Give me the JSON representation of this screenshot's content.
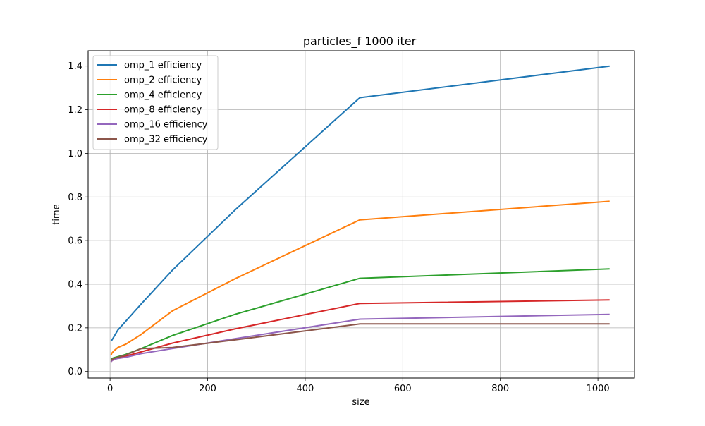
{
  "chart_data": {
    "type": "line",
    "title": "particles_f 1000 iter",
    "xlabel": "size",
    "ylabel": "time",
    "xlim": [
      -45,
      1075
    ],
    "ylim": [
      -0.03,
      1.47
    ],
    "xticks": [
      0,
      200,
      400,
      600,
      800,
      1000
    ],
    "yticks": [
      0.0,
      0.2,
      0.4,
      0.6,
      0.8,
      1.0,
      1.2,
      1.4
    ],
    "xtick_labels": [
      "0",
      "200",
      "400",
      "600",
      "800",
      "1000"
    ],
    "ytick_labels": [
      "0.0",
      "0.2",
      "0.4",
      "0.6",
      "0.8",
      "1.0",
      "1.2",
      "1.4"
    ],
    "grid": true,
    "legend_position": "top-left",
    "x": [
      2,
      4,
      8,
      16,
      32,
      64,
      128,
      256,
      512,
      1024
    ],
    "series": [
      {
        "name": "omp_1 efficiency",
        "color": "#1f77b4",
        "values": [
          0.14,
          0.145,
          0.16,
          0.19,
          0.23,
          0.31,
          0.465,
          0.74,
          1.255,
          1.4
        ]
      },
      {
        "name": "omp_2 efficiency",
        "color": "#ff7f0e",
        "values": [
          0.075,
          0.085,
          0.095,
          0.11,
          0.125,
          0.17,
          0.278,
          0.425,
          0.695,
          0.78
        ]
      },
      {
        "name": "omp_4 efficiency",
        "color": "#2ca02c",
        "values": [
          0.055,
          0.06,
          0.063,
          0.068,
          0.078,
          0.105,
          0.165,
          0.262,
          0.427,
          0.47
        ]
      },
      {
        "name": "omp_8 efficiency",
        "color": "#d62728",
        "values": [
          0.045,
          0.05,
          0.055,
          0.062,
          0.07,
          0.09,
          0.13,
          0.195,
          0.312,
          0.328
        ]
      },
      {
        "name": "omp_16 efficiency",
        "color": "#9467bd",
        "values": [
          0.045,
          0.05,
          0.055,
          0.06,
          0.065,
          0.082,
          0.105,
          0.15,
          0.24,
          0.262
        ]
      },
      {
        "name": "omp_32 efficiency",
        "color": "#8c564b",
        "values": [
          0.05,
          0.055,
          0.06,
          0.065,
          0.075,
          0.105,
          0.11,
          0.145,
          0.218,
          0.218
        ]
      }
    ]
  }
}
